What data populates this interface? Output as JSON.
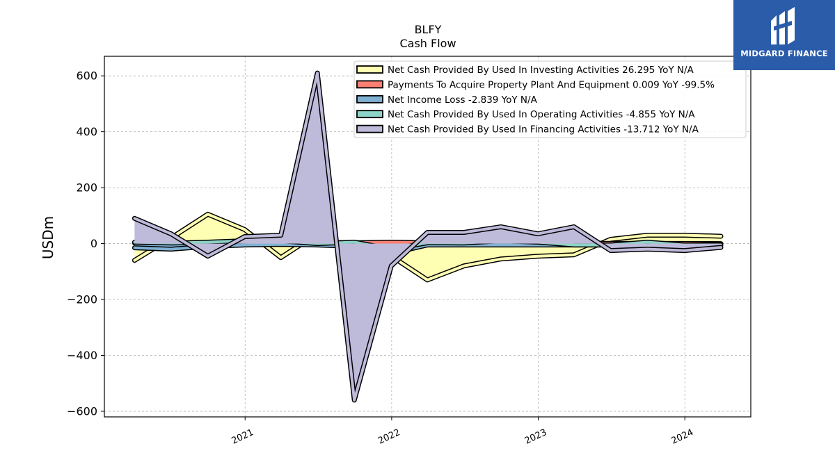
{
  "brand": {
    "name": "MIDGARD FINANCE",
    "color": "#2a5caa"
  },
  "chart_data": {
    "type": "area",
    "title": "BLFY",
    "subtitle": "Cash Flow",
    "xlabel": "",
    "ylabel": "USDm",
    "ylim": [
      -620,
      670
    ],
    "xlim": [
      2020.04,
      2024.45
    ],
    "yticks": [
      600,
      400,
      200,
      0,
      -200,
      -400,
      -600
    ],
    "ytick_labels": [
      "600",
      "400",
      "200",
      "0",
      "−200",
      "−400",
      "−600"
    ],
    "xticks": [
      2021,
      2022,
      2023,
      2024
    ],
    "xtick_labels": [
      "2021",
      "2022",
      "2023",
      "2024"
    ],
    "grid": true,
    "legend_position": "top-right",
    "x": [
      "2020-03-31",
      "2020-06-30",
      "2020-09-30",
      "2020-12-31",
      "2021-03-31",
      "2021-06-30",
      "2021-09-30",
      "2021-12-31",
      "2022-03-31",
      "2022-06-30",
      "2022-09-30",
      "2022-12-31",
      "2023-03-31",
      "2023-06-30",
      "2023-09-30",
      "2023-12-31",
      "2024-03-31"
    ],
    "series": [
      {
        "name": "Net Cash Provided By Used In Investing Activities",
        "legend_label": "Net Cash Provided By Used In Investing Activities  26.295 YoY N/A",
        "color": "#ffffb3",
        "values": [
          -60,
          20,
          105,
          50,
          -50,
          35,
          -45,
          -45,
          -130,
          -80,
          -55,
          -45,
          -40,
          15,
          30,
          30,
          26.3
        ]
      },
      {
        "name": "Payments To Acquire Property Plant And Equipment",
        "legend_label": "Payments To Acquire Property Plant And Equipment  0.009 YoY -99.5%",
        "color": "#fb8072",
        "values": [
          2,
          2,
          2,
          3,
          8,
          4,
          3,
          5,
          3,
          2,
          1,
          1,
          1,
          1,
          1,
          0.5,
          0.009
        ]
      },
      {
        "name": "Net Income Loss",
        "legend_label": "Net Income Loss  -2.839 YoY N/A",
        "color": "#80b1d3",
        "values": [
          -15,
          -20,
          -10,
          -5,
          -3,
          -5,
          -10,
          -35,
          -5,
          -5,
          -5,
          -5,
          -5,
          -5,
          -5,
          -5,
          -2.839
        ]
      },
      {
        "name": "Net Cash Provided By Used In Operating Activities",
        "legend_label": "Net Cash Provided By Used In Operating Activities  -4.855 YoY N/A",
        "color": "#8dd3c7",
        "values": [
          5,
          2,
          5,
          10,
          10,
          0,
          5,
          -20,
          3,
          2,
          10,
          5,
          -5,
          -5,
          5,
          -5,
          -4.855
        ]
      },
      {
        "name": "Net Cash Provided By Used In Financing Activities",
        "legend_label": "Net Cash Provided By Used In Financing Activities  -13.712 YoY N/A",
        "color": "#bebada",
        "values": [
          90,
          35,
          -45,
          25,
          30,
          610,
          -560,
          -80,
          40,
          40,
          60,
          35,
          60,
          -25,
          -20,
          -25,
          -13.712
        ]
      }
    ]
  }
}
